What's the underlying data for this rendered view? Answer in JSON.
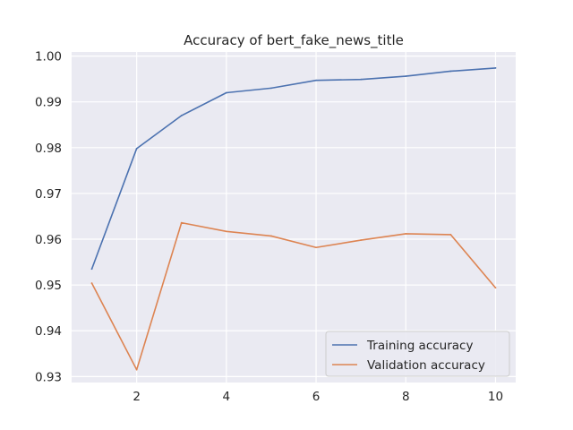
{
  "chart_data": {
    "type": "line",
    "title": "Accuracy of bert_fake_news_title",
    "xlabel": "",
    "ylabel": "",
    "x": [
      1,
      2,
      3,
      4,
      5,
      6,
      7,
      8,
      9,
      10
    ],
    "xlim": [
      0.55,
      10.45
    ],
    "ylim": [
      0.9287,
      1.0009
    ],
    "xticks": [
      2,
      4,
      6,
      8,
      10
    ],
    "yticks": [
      0.93,
      0.94,
      0.95,
      0.96,
      0.97,
      0.98,
      0.99,
      1.0
    ],
    "ytick_labels": [
      "0.93",
      "0.94",
      "0.95",
      "0.96",
      "0.97",
      "0.98",
      "0.99",
      "1.00"
    ],
    "grid": true,
    "legend_position": "bottom-right",
    "series": [
      {
        "name": "Training accuracy",
        "color": "#4c72b0",
        "values": [
          0.9535,
          0.9798,
          0.987,
          0.992,
          0.993,
          0.9947,
          0.9949,
          0.9956,
          0.9967,
          0.9974
        ]
      },
      {
        "name": "Validation accuracy",
        "color": "#dd8452",
        "values": [
          0.9504,
          0.9315,
          0.9636,
          0.9617,
          0.9607,
          0.9582,
          0.9598,
          0.9612,
          0.961,
          0.9494
        ]
      }
    ]
  }
}
